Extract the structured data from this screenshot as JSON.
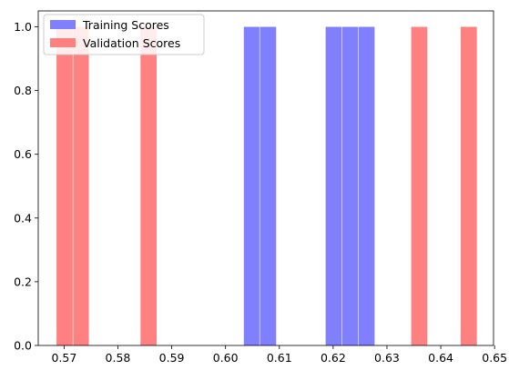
{
  "chart_data": {
    "type": "bar",
    "title": "",
    "xlabel": "",
    "ylabel": "",
    "xlim": [
      0.5652,
      0.6498
    ],
    "ylim": [
      0,
      1.05
    ],
    "xticks": [
      "0.57",
      "0.58",
      "0.59",
      "0.60",
      "0.61",
      "0.62",
      "0.63",
      "0.64",
      "0.65"
    ],
    "yticks": [
      "0.0",
      "0.2",
      "0.4",
      "0.6",
      "0.8",
      "1.0"
    ],
    "legend_position": "top-left",
    "grid": false,
    "series": [
      {
        "name": "Training Scores",
        "color": "#8080ff",
        "bins": [
          {
            "x0": 0.6034,
            "x1": 0.6063,
            "value": 1
          },
          {
            "x0": 0.6064,
            "x1": 0.6094,
            "value": 1
          },
          {
            "x0": 0.6186,
            "x1": 0.6216,
            "value": 1
          },
          {
            "x0": 0.6217,
            "x1": 0.6246,
            "value": 1
          },
          {
            "x0": 0.6247,
            "x1": 0.6277,
            "value": 1
          }
        ]
      },
      {
        "name": "Validation Scores",
        "color": "#ff8080",
        "bins": [
          {
            "x0": 0.5686,
            "x1": 0.5716,
            "value": 1
          },
          {
            "x0": 0.5717,
            "x1": 0.5746,
            "value": 1
          },
          {
            "x0": 0.5842,
            "x1": 0.5872,
            "value": 1
          },
          {
            "x0": 0.6345,
            "x1": 0.6375,
            "value": 1
          },
          {
            "x0": 0.6437,
            "x1": 0.6467,
            "value": 1
          }
        ]
      }
    ]
  }
}
